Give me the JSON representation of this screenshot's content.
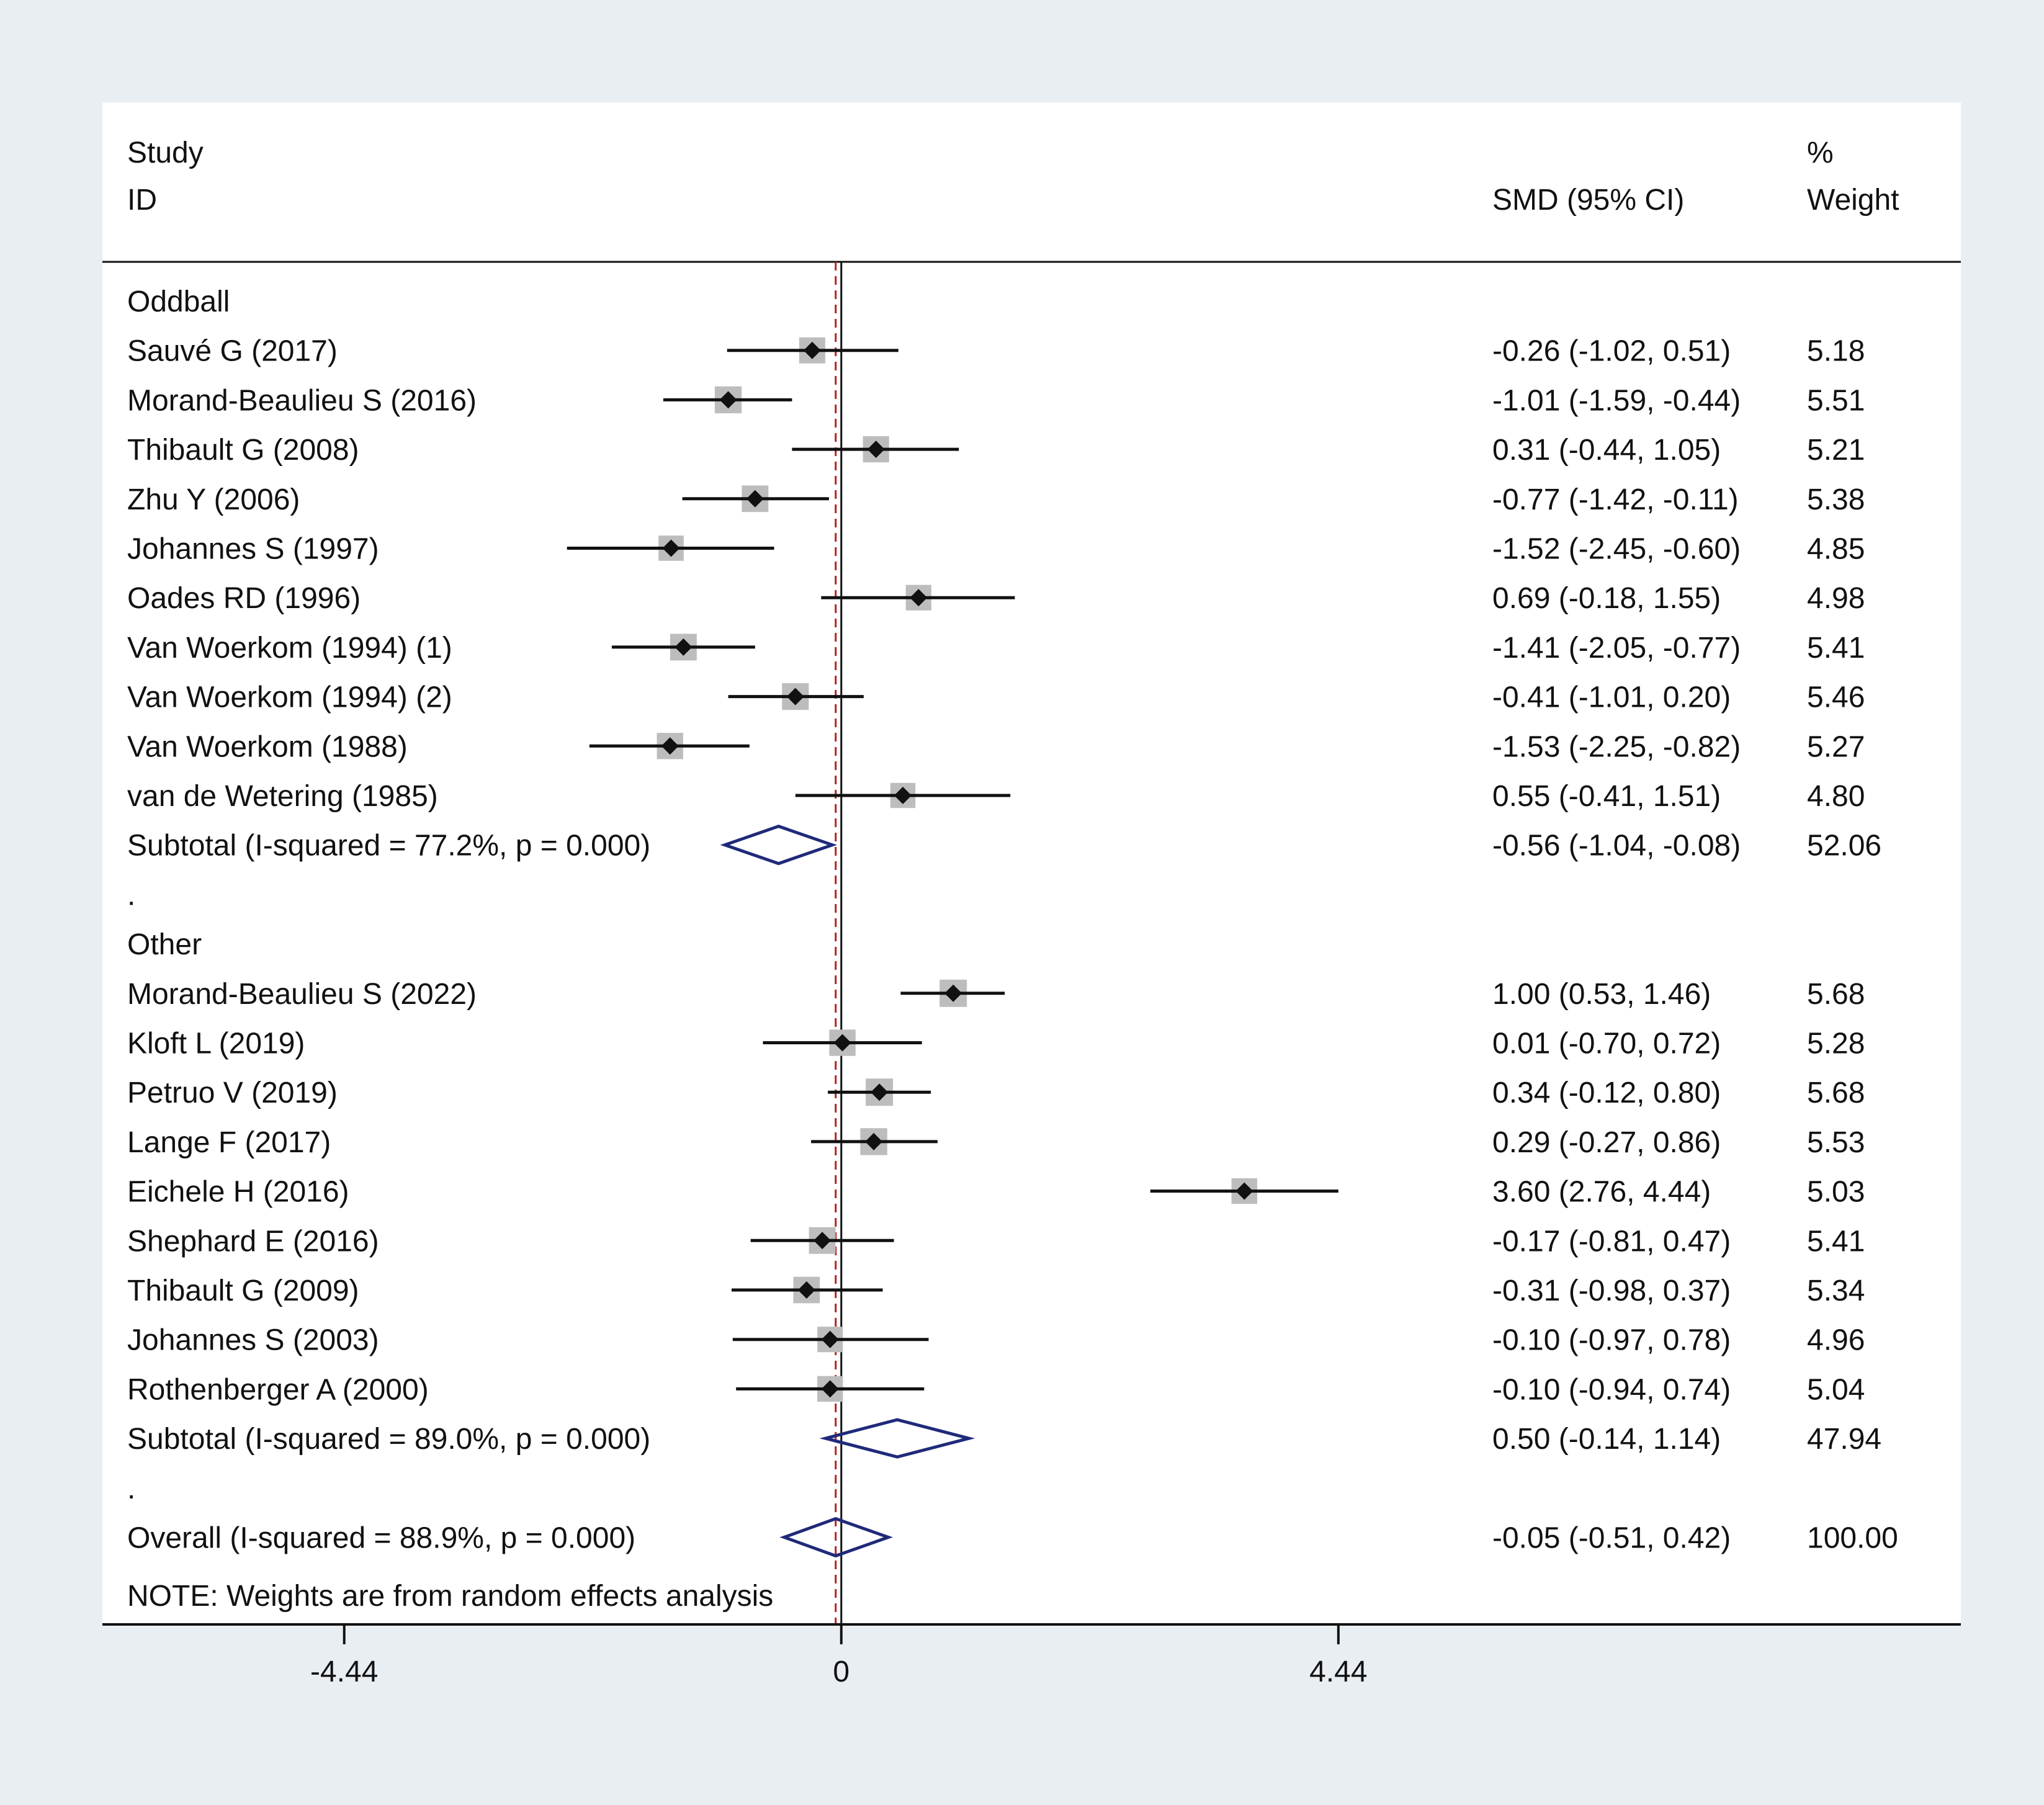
{
  "colors": {
    "outer_background": "#e9eef3",
    "plot_background": "#ffffff",
    "ink": "#111111",
    "axis_line": "#111111",
    "overall_line": "#b22222",
    "diamond_stroke": "#1f2a7a",
    "weight_box": "#bdbdbd"
  },
  "header": {
    "study_line1": "Study",
    "study_line2": "ID",
    "estimate_heading": "SMD (95% CI)",
    "weight_line1": "%",
    "weight_line2": "Weight"
  },
  "note": "NOTE: Weights are from random effects analysis",
  "chart_data": {
    "type": "forest",
    "measure": "SMD (95% CI)",
    "xlim": [
      -6.6,
      10.0
    ],
    "x_ticks": [
      -4.44,
      0,
      4.44
    ],
    "x_tick_labels": [
      "-4.44",
      "0",
      "4.44"
    ],
    "null_line": 0,
    "overall_effect_line": -0.05,
    "rows": [
      {
        "kind": "group",
        "label": "Oddball"
      },
      {
        "kind": "study",
        "label": "Sauvé G (2017)",
        "smd": -0.26,
        "lower": -1.02,
        "upper": 0.51,
        "ci_text": "-0.26 (-1.02, 0.51)",
        "weight": 5.18,
        "weight_text": "5.18"
      },
      {
        "kind": "study",
        "label": "Morand-Beaulieu S (2016)",
        "smd": -1.01,
        "lower": -1.59,
        "upper": -0.44,
        "ci_text": "-1.01 (-1.59, -0.44)",
        "weight": 5.51,
        "weight_text": "5.51"
      },
      {
        "kind": "study",
        "label": "Thibault G (2008)",
        "smd": 0.31,
        "lower": -0.44,
        "upper": 1.05,
        "ci_text": "0.31 (-0.44, 1.05)",
        "weight": 5.21,
        "weight_text": "5.21"
      },
      {
        "kind": "study",
        "label": "Zhu Y (2006)",
        "smd": -0.77,
        "lower": -1.42,
        "upper": -0.11,
        "ci_text": "-0.77 (-1.42, -0.11)",
        "weight": 5.38,
        "weight_text": "5.38"
      },
      {
        "kind": "study",
        "label": "Johannes S (1997)",
        "smd": -1.52,
        "lower": -2.45,
        "upper": -0.6,
        "ci_text": "-1.52 (-2.45, -0.60)",
        "weight": 4.85,
        "weight_text": "4.85"
      },
      {
        "kind": "study",
        "label": "Oades RD (1996)",
        "smd": 0.69,
        "lower": -0.18,
        "upper": 1.55,
        "ci_text": "0.69 (-0.18, 1.55)",
        "weight": 4.98,
        "weight_text": "4.98"
      },
      {
        "kind": "study",
        "label": "Van Woerkom (1994) (1)",
        "smd": -1.41,
        "lower": -2.05,
        "upper": -0.77,
        "ci_text": "-1.41 (-2.05, -0.77)",
        "weight": 5.41,
        "weight_text": "5.41"
      },
      {
        "kind": "study",
        "label": "Van Woerkom (1994) (2)",
        "smd": -0.41,
        "lower": -1.01,
        "upper": 0.2,
        "ci_text": "-0.41 (-1.01, 0.20)",
        "weight": 5.46,
        "weight_text": "5.46"
      },
      {
        "kind": "study",
        "label": "Van Woerkom (1988)",
        "smd": -1.53,
        "lower": -2.25,
        "upper": -0.82,
        "ci_text": "-1.53 (-2.25, -0.82)",
        "weight": 5.27,
        "weight_text": "5.27"
      },
      {
        "kind": "study",
        "label": "van de Wetering (1985)",
        "smd": 0.55,
        "lower": -0.41,
        "upper": 1.51,
        "ci_text": "0.55 (-0.41, 1.51)",
        "weight": 4.8,
        "weight_text": "4.80"
      },
      {
        "kind": "subtotal",
        "label": "Subtotal  (I-squared = 77.2%, p = 0.000)",
        "smd": -0.56,
        "lower": -1.04,
        "upper": -0.08,
        "ci_text": "-0.56 (-1.04, -0.08)",
        "weight": 52.06,
        "weight_text": "52.06"
      },
      {
        "kind": "spacer",
        "label": "."
      },
      {
        "kind": "group",
        "label": "Other"
      },
      {
        "kind": "study",
        "label": "Morand-Beaulieu S  (2022)",
        "smd": 1.0,
        "lower": 0.53,
        "upper": 1.46,
        "ci_text": "1.00 (0.53, 1.46)",
        "weight": 5.68,
        "weight_text": "5.68"
      },
      {
        "kind": "study",
        "label": "Kloft L (2019)",
        "smd": 0.01,
        "lower": -0.7,
        "upper": 0.72,
        "ci_text": "0.01 (-0.70, 0.72)",
        "weight": 5.28,
        "weight_text": "5.28"
      },
      {
        "kind": "study",
        "label": "Petruo V (2019)",
        "smd": 0.34,
        "lower": -0.12,
        "upper": 0.8,
        "ci_text": "0.34 (-0.12, 0.80)",
        "weight": 5.68,
        "weight_text": "5.68"
      },
      {
        "kind": "study",
        "label": "Lange F (2017)",
        "smd": 0.29,
        "lower": -0.27,
        "upper": 0.86,
        "ci_text": "0.29 (-0.27, 0.86)",
        "weight": 5.53,
        "weight_text": "5.53"
      },
      {
        "kind": "study",
        "label": "Eichele H (2016)",
        "smd": 3.6,
        "lower": 2.76,
        "upper": 4.44,
        "ci_text": "3.60 (2.76, 4.44)",
        "weight": 5.03,
        "weight_text": "5.03"
      },
      {
        "kind": "study",
        "label": "Shephard E (2016)",
        "smd": -0.17,
        "lower": -0.81,
        "upper": 0.47,
        "ci_text": "-0.17 (-0.81, 0.47)",
        "weight": 5.41,
        "weight_text": "5.41"
      },
      {
        "kind": "study",
        "label": "Thibault G (2009)",
        "smd": -0.31,
        "lower": -0.98,
        "upper": 0.37,
        "ci_text": "-0.31 (-0.98, 0.37)",
        "weight": 5.34,
        "weight_text": "5.34"
      },
      {
        "kind": "study",
        "label": "Johannes S (2003)",
        "smd": -0.1,
        "lower": -0.97,
        "upper": 0.78,
        "ci_text": "-0.10 (-0.97, 0.78)",
        "weight": 4.96,
        "weight_text": "4.96"
      },
      {
        "kind": "study",
        "label": "Rothenberger A (2000)",
        "smd": -0.1,
        "lower": -0.94,
        "upper": 0.74,
        "ci_text": "-0.10 (-0.94, 0.74)",
        "weight": 5.04,
        "weight_text": "5.04"
      },
      {
        "kind": "subtotal",
        "label": "Subtotal  (I-squared = 89.0%, p = 0.000)",
        "smd": 0.5,
        "lower": -0.14,
        "upper": 1.14,
        "ci_text": "0.50 (-0.14, 1.14)",
        "weight": 47.94,
        "weight_text": "47.94"
      },
      {
        "kind": "spacer",
        "label": "."
      },
      {
        "kind": "overall",
        "label": "Overall  (I-squared = 88.9%, p = 0.000)",
        "smd": -0.05,
        "lower": -0.51,
        "upper": 0.42,
        "ci_text": "-0.05 (-0.51, 0.42)",
        "weight": 100.0,
        "weight_text": "100.00"
      }
    ]
  }
}
